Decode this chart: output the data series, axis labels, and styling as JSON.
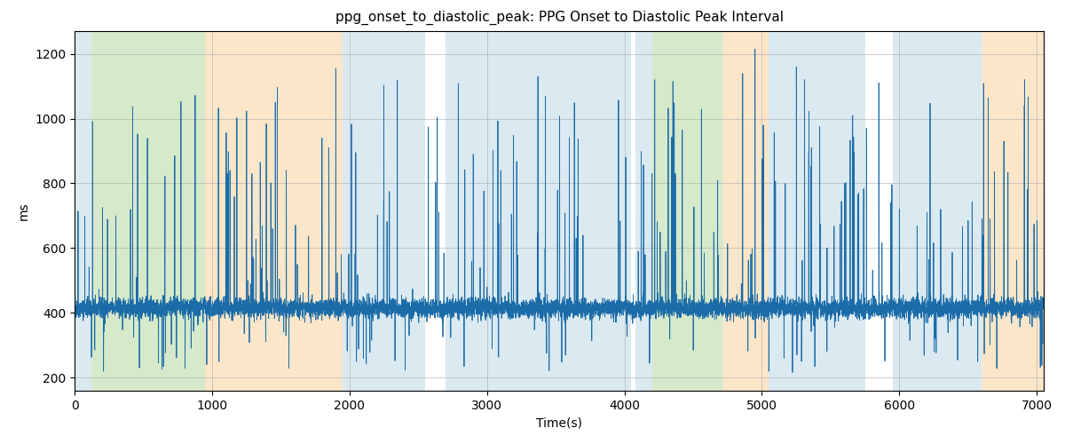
{
  "title": "ppg_onset_to_diastolic_peak: PPG Onset to Diastolic Peak Interval",
  "xlabel": "Time(s)",
  "ylabel": "ms",
  "xlim": [
    0,
    7050
  ],
  "ylim": [
    160,
    1270
  ],
  "yticks": [
    200,
    400,
    600,
    800,
    1000,
    1200
  ],
  "xticks": [
    0,
    1000,
    2000,
    3000,
    4000,
    5000,
    6000,
    7000
  ],
  "line_color": "#1b6ca8",
  "line_width": 0.6,
  "background_color": "#ffffff",
  "bands": [
    {
      "xmin": 0,
      "xmax": 120,
      "color": "#b0cfe0",
      "alpha": 0.45
    },
    {
      "xmin": 120,
      "xmax": 950,
      "color": "#a8d08d",
      "alpha": 0.45
    },
    {
      "xmin": 950,
      "xmax": 1950,
      "color": "#f8c88a",
      "alpha": 0.45
    },
    {
      "xmin": 1950,
      "xmax": 2550,
      "color": "#b0cfe0",
      "alpha": 0.45
    },
    {
      "xmin": 2700,
      "xmax": 4050,
      "color": "#b0cfe0",
      "alpha": 0.45
    },
    {
      "xmin": 4080,
      "xmax": 4200,
      "color": "#b0cfe0",
      "alpha": 0.45
    },
    {
      "xmin": 4200,
      "xmax": 4720,
      "color": "#a8d08d",
      "alpha": 0.45
    },
    {
      "xmin": 4720,
      "xmax": 5050,
      "color": "#f8c88a",
      "alpha": 0.45
    },
    {
      "xmin": 5050,
      "xmax": 5750,
      "color": "#b0cfe0",
      "alpha": 0.45
    },
    {
      "xmin": 5950,
      "xmax": 6600,
      "color": "#b0cfe0",
      "alpha": 0.45
    },
    {
      "xmin": 6600,
      "xmax": 7100,
      "color": "#f8c88a",
      "alpha": 0.45
    }
  ],
  "figsize": [
    12.0,
    5.0
  ],
  "dpi": 100,
  "seed": 42,
  "baseline": 415,
  "noise_std": 15,
  "total_points": 8300,
  "total_duration": 7050
}
